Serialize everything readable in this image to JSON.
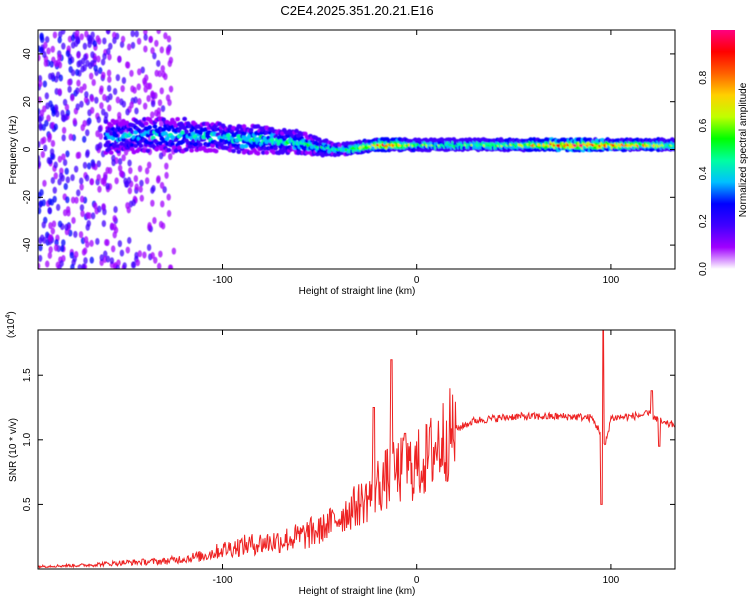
{
  "title": "C2E4.2025.351.20.21.E16",
  "chart_data": [
    {
      "type": "heatmap",
      "title": "C2E4.2025.351.20.21.E16",
      "xlabel": "Height of straight line (km)",
      "ylabel": "Frequency (Hz)",
      "xlim": [
        -195,
        133
      ],
      "ylim": [
        -50,
        50
      ],
      "xticks": [
        -100,
        0,
        100
      ],
      "xtick_labels": [
        "-100",
        "0",
        "100"
      ],
      "yticks": [
        -40,
        -20,
        0,
        20,
        40
      ],
      "ytick_labels": [
        "-40",
        "-20",
        "0",
        "20",
        "40"
      ],
      "colorbar": {
        "label": "Normalized spectral amplitude",
        "range": [
          0,
          1
        ],
        "ticks": [
          0.0,
          0.2,
          0.4,
          0.6,
          0.8
        ],
        "tick_labels": [
          "0.0",
          "0.2",
          "0.4",
          "0.6",
          "0.8"
        ],
        "colormap": [
          "#ffffff",
          "#a000ff",
          "#4000ff",
          "#0000ff",
          "#00c0ff",
          "#00ffa0",
          "#00ff00",
          "#c0ff00",
          "#ffd000",
          "#ff6000",
          "#ff0000",
          "#ff0080"
        ]
      },
      "ridge": {
        "x": [
          -160,
          -140,
          -120,
          -100,
          -80,
          -60,
          -50,
          -40,
          -30,
          -20,
          -10,
          0,
          20,
          50,
          80,
          100,
          133
        ],
        "center_hz": [
          5,
          6,
          6,
          5,
          4,
          3,
          1,
          0,
          1,
          2,
          2,
          2,
          2,
          2,
          2,
          2,
          2
        ],
        "half_width_hz": [
          6,
          6,
          6,
          5,
          5,
          4,
          3,
          2,
          2,
          2,
          2,
          2,
          2,
          2,
          2,
          2,
          2
        ],
        "peak_amplitude": [
          0.35,
          0.4,
          0.4,
          0.4,
          0.45,
          0.45,
          0.45,
          0.5,
          0.6,
          0.8,
          0.8,
          0.55,
          0.55,
          0.6,
          0.95,
          0.8,
          0.6
        ]
      }
    },
    {
      "type": "line",
      "xlabel": "Height of straight line (km)",
      "ylabel": "SNR (10 * v/v)",
      "scale_label": "(x10",
      "scale_exponent": "4",
      "scale_suffix": ")",
      "xlim": [
        -195,
        133
      ],
      "ylim": [
        0,
        1.85
      ],
      "xticks": [
        -100,
        0,
        100
      ],
      "xtick_labels": [
        "-100",
        "0",
        "100"
      ],
      "yticks": [
        0.5,
        1.0,
        1.5
      ],
      "ytick_labels": [
        "0.5",
        "1.0",
        "1.5"
      ],
      "series": [
        {
          "name": "SNR",
          "color": "#ee2222",
          "x": [
            -195,
            -170,
            -150,
            -130,
            -110,
            -100,
            -90,
            -80,
            -70,
            -60,
            -50,
            -45,
            -40,
            -35,
            -30,
            -25,
            -20,
            -15,
            -10,
            -5,
            0,
            5,
            10,
            20,
            30,
            50,
            70,
            80,
            90,
            95,
            97,
            100,
            110,
            120,
            125,
            128,
            133
          ],
          "y": [
            0.02,
            0.03,
            0.05,
            0.06,
            0.1,
            0.15,
            0.18,
            0.2,
            0.22,
            0.25,
            0.3,
            0.35,
            0.4,
            0.45,
            0.5,
            0.55,
            0.65,
            0.7,
            0.75,
            0.78,
            0.8,
            0.85,
            0.95,
            1.08,
            1.15,
            1.18,
            1.18,
            1.18,
            1.17,
            1.05,
            0.95,
            1.17,
            1.18,
            1.2,
            1.15,
            1.12,
            1.12
          ],
          "spikes": [
            {
              "x": -22,
              "y": 1.25
            },
            {
              "x": -13,
              "y": 1.62
            },
            {
              "x": -6,
              "y": 1.05
            },
            {
              "x": 96,
              "y": 1.85
            },
            {
              "x": 95,
              "y": 0.5
            },
            {
              "x": 125,
              "y": 0.95
            },
            {
              "x": 121,
              "y": 1.38
            }
          ]
        }
      ]
    }
  ]
}
